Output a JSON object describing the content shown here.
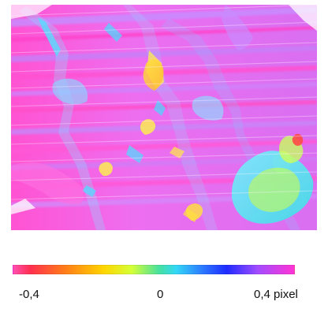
{
  "colorbar": {
    "ticks": [
      "-0,4",
      "0",
      "0,4 pixel"
    ],
    "gradient": [
      "#ff4fb0",
      "#ff2f4f",
      "#ff7a1a",
      "#ffd400",
      "#d6ff36",
      "#46e0a0",
      "#33d7f6",
      "#2b74ff",
      "#1f2bff",
      "#a24cff",
      "#ff34d5"
    ]
  }
}
